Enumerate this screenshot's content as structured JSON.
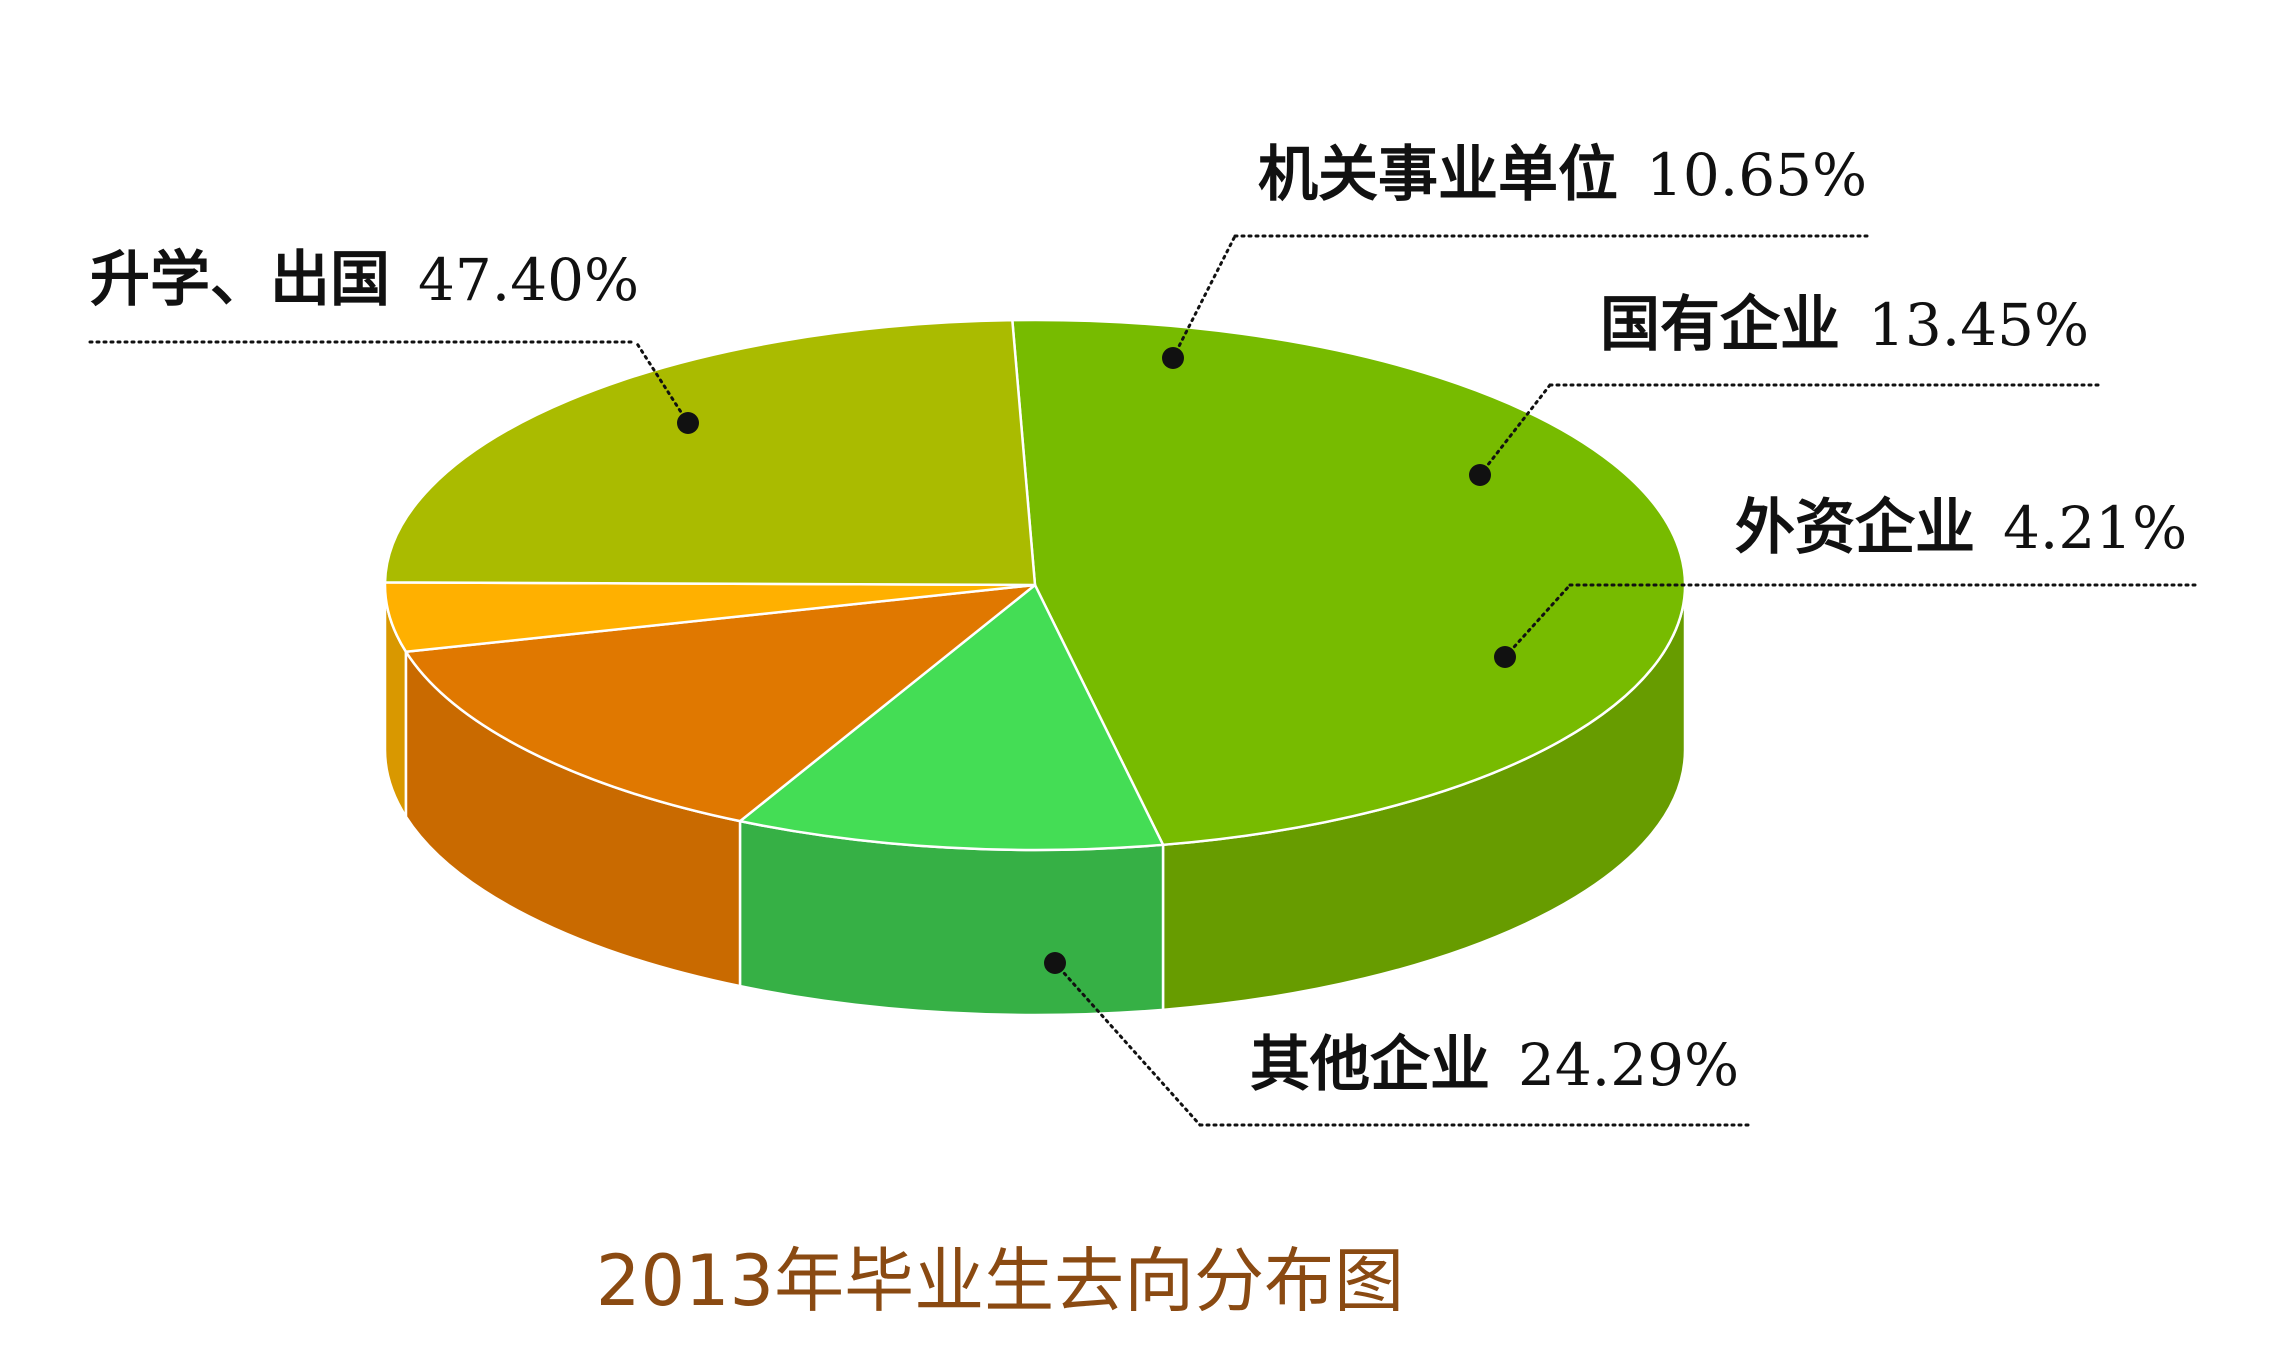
{
  "chart_data": {
    "type": "pie",
    "title": "2013年毕业生去向分布图",
    "slices": [
      {
        "label": "升学、出国",
        "value": 47.4,
        "display": "47.40%",
        "color": "#77bb00",
        "side_color": "#679c00"
      },
      {
        "label": "机关事业单位",
        "value": 10.65,
        "display": "10.65%",
        "color": "#44dd55",
        "side_color": "#36b045"
      },
      {
        "label": "国有企业",
        "value": 13.45,
        "display": "13.45%",
        "color": "#e07800",
        "side_color": "#c96a00"
      },
      {
        "label": "外资企业",
        "value": 4.21,
        "display": "4.21%",
        "color": "#ffb000",
        "side_color": "#d99800"
      },
      {
        "label": "其他企业",
        "value": 24.29,
        "display": "24.29%",
        "color": "#aabb00",
        "side_color": "#8a9400"
      }
    ]
  },
  "colors": {
    "caption": "#8a4a12",
    "separator": "#ffffff",
    "leader": "#111111"
  }
}
